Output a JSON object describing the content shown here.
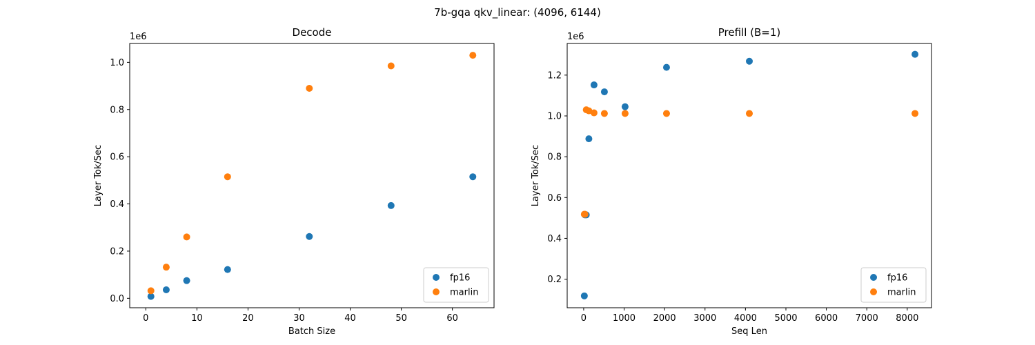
{
  "figure": {
    "suptitle": "7b-gqa qkv_linear: (4096, 6144)"
  },
  "chart_data": [
    {
      "type": "scatter",
      "title": "Decode",
      "xlabel": "Batch Size",
      "ylabel": "Layer Tok/Sec",
      "offset_text": "1e6",
      "xlim": [
        -3.15,
        68.15
      ],
      "ylim": [
        -0.04,
        1.08
      ],
      "xticks": [
        0,
        10,
        20,
        30,
        40,
        50,
        60
      ],
      "xtick_labels": [
        "0",
        "10",
        "20",
        "30",
        "40",
        "50",
        "60"
      ],
      "yticks": [
        0.0,
        0.2,
        0.4,
        0.6,
        0.8,
        1.0
      ],
      "ytick_labels": [
        "0.0",
        "0.2",
        "0.4",
        "0.6",
        "0.8",
        "1.0"
      ],
      "grid": false,
      "legend_position": "lower right",
      "series": [
        {
          "name": "fp16",
          "color": "#1f77b4",
          "x": [
            1,
            4,
            8,
            16,
            32,
            48,
            64
          ],
          "y": [
            0.008,
            0.036,
            0.075,
            0.122,
            0.262,
            0.393,
            0.515
          ]
        },
        {
          "name": "marlin",
          "color": "#ff7f0e",
          "x": [
            1,
            4,
            8,
            16,
            32,
            48,
            64
          ],
          "y": [
            0.032,
            0.132,
            0.26,
            0.515,
            0.89,
            0.985,
            1.03
          ]
        }
      ]
    },
    {
      "type": "scatter",
      "title": "Prefill (B=1)",
      "xlabel": "Seq Len",
      "ylabel": "Layer Tok/Sec",
      "offset_text": "1e6",
      "xlim": [
        -408,
        8600
      ],
      "ylim": [
        0.06,
        1.355
      ],
      "xticks": [
        0,
        1000,
        2000,
        3000,
        4000,
        5000,
        6000,
        7000,
        8000
      ],
      "xtick_labels": [
        "0",
        "1000",
        "2000",
        "3000",
        "4000",
        "5000",
        "6000",
        "7000",
        "8000"
      ],
      "yticks": [
        0.2,
        0.4,
        0.6,
        0.8,
        1.0,
        1.2
      ],
      "ytick_labels": [
        "0.2",
        "0.4",
        "0.6",
        "0.8",
        "1.0",
        "1.2"
      ],
      "grid": false,
      "legend_position": "lower right",
      "series": [
        {
          "name": "fp16",
          "color": "#1f77b4",
          "x": [
            16,
            32,
            64,
            128,
            256,
            512,
            1024,
            2048,
            4096,
            8192
          ],
          "y": [
            0.118,
            0.515,
            0.515,
            0.888,
            1.152,
            1.118,
            1.045,
            1.238,
            1.268,
            1.302
          ]
        },
        {
          "name": "marlin",
          "color": "#ff7f0e",
          "x": [
            16,
            32,
            64,
            128,
            256,
            512,
            1024,
            2048,
            4096,
            8192
          ],
          "y": [
            0.518,
            0.518,
            1.03,
            1.025,
            1.015,
            1.012,
            1.012,
            1.012,
            1.012,
            1.012
          ]
        }
      ]
    }
  ]
}
